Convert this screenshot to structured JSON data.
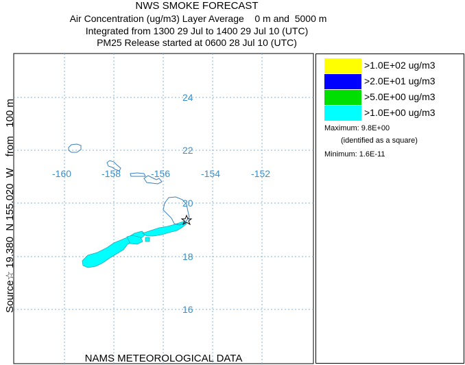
{
  "header": {
    "title": "NWS SMOKE FORECAST",
    "line2": "Air Concentration (ug/m3) Layer Average    0 m and  5000 m",
    "line3": "Integrated from 1300 29 Jul to 1400 29 Jul 10 (UTC)",
    "line4": "PM25 Release started at 0600 28 Jul 10 (UTC)"
  },
  "side_label": "Source☆ 19.380  N 155.020  W    from   100 m",
  "bottom_label": "NAMS METEOROLOGICAL DATA",
  "map": {
    "lon_labels": [
      "-160",
      "-158",
      "-156",
      "-154",
      "-152"
    ],
    "lat_labels": [
      "24",
      "22",
      "20",
      "18",
      "16"
    ],
    "grid_color": "#7fb2d8",
    "coast_color": "#3a7fbf",
    "plume_color": "#00ffff",
    "source_marker": "star-icon"
  },
  "legend": {
    "items": [
      {
        "color": "#ffff00",
        "label": ">1.0E+02 ug/m3"
      },
      {
        "color": "#0000ff",
        "label": ">2.0E+01 ug/m3"
      },
      {
        "color": "#00e000",
        "label": ">5.0E+00 ug/m3"
      },
      {
        "color": "#00ffff",
        "label": ">1.0E+00 ug/m3"
      }
    ],
    "maximum": "Maximum: 9.8E+00",
    "max_note": "(identified as a square)",
    "minimum": "Minimum: 1.6E-11"
  }
}
